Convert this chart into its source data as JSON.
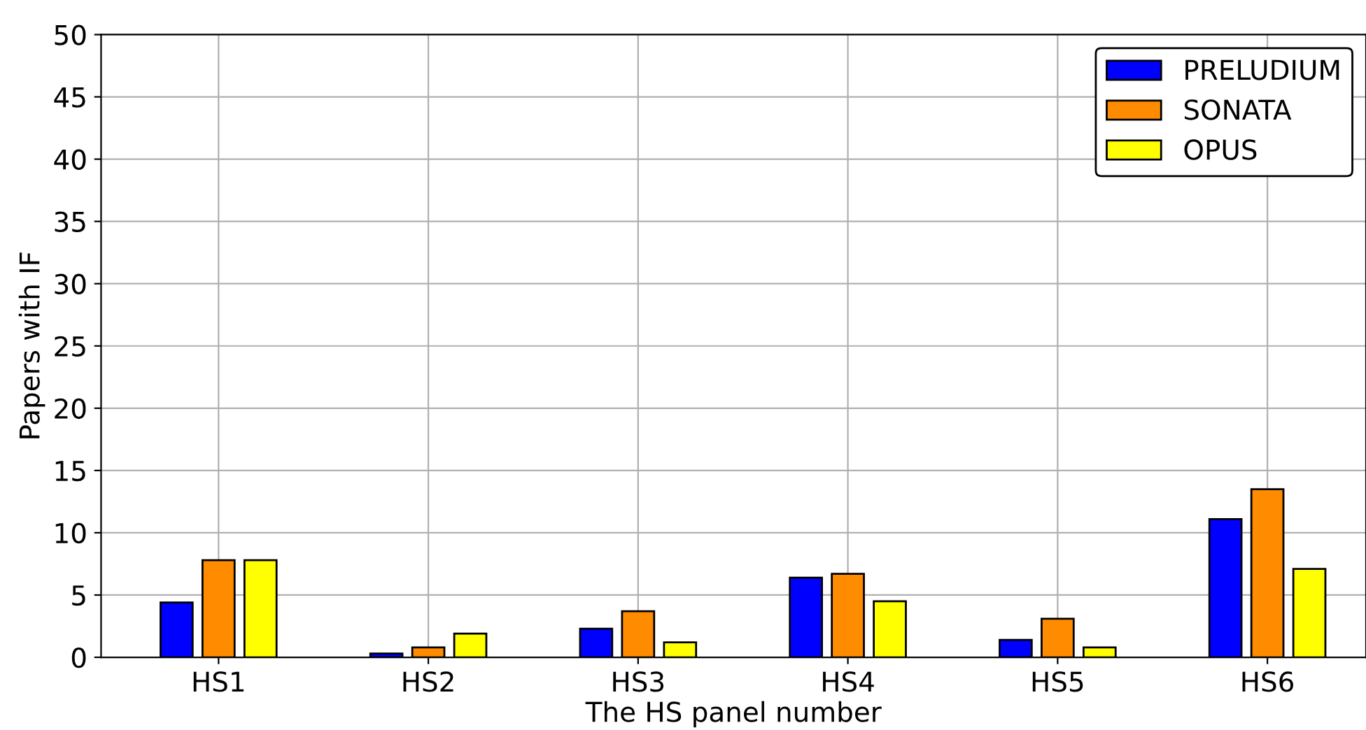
{
  "chart_data": {
    "type": "bar",
    "xlabel": "The HS panel number",
    "ylabel": "Papers with IF",
    "categories": [
      "HS1",
      "HS2",
      "HS3",
      "HS4",
      "HS5",
      "HS6"
    ],
    "series": [
      {
        "name": "PRELUDIUM",
        "color": "#0000ff",
        "values": [
          4.4,
          0.3,
          2.3,
          6.4,
          1.4,
          11.1
        ]
      },
      {
        "name": "SONATA",
        "color": "#ff8c00",
        "values": [
          7.8,
          0.8,
          3.7,
          6.7,
          3.1,
          13.5
        ]
      },
      {
        "name": "OPUS",
        "color": "#ffff00",
        "values": [
          7.8,
          1.9,
          1.2,
          4.5,
          0.8,
          7.1
        ]
      }
    ],
    "ylim": [
      0,
      50
    ],
    "yticks": [
      0,
      5,
      10,
      15,
      20,
      25,
      30,
      35,
      40,
      45,
      50
    ],
    "grid": true,
    "legend": "top right"
  }
}
